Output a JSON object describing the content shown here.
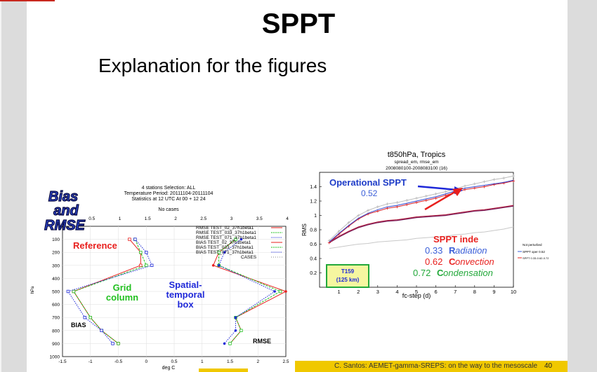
{
  "slide": {
    "title": "SPPT",
    "subtitle": "Explanation for the figures",
    "footer": "C. Santos: AEMET-gamma-SREPS: on the way to the mesoscale",
    "page_number": "40"
  },
  "left_figure": {
    "header_lines": [
      "4 stations Selection: ALL",
      "Temperature  Period: 20111104-20111104",
      "Statistics at 12 UTC  At 00 + 12 24"
    ],
    "top_axis_title": "No cases",
    "top_ticks": [
      "0.5",
      "1",
      "1.5",
      "2",
      "2.5",
      "3",
      "3.5",
      "4"
    ],
    "bottom_ticks": [
      "-1.5",
      "-1",
      "-0.5",
      "0",
      "0.5",
      "1",
      "1.5",
      "2",
      "2.5"
    ],
    "y_ticks": [
      "100",
      "200",
      "300",
      "400",
      "500",
      "600",
      "700",
      "800",
      "900",
      "1000"
    ],
    "xlabel": "deg C",
    "ylabel": "hPa",
    "legend": [
      "RMSE TEST_02_37h1beta1",
      "RMSE TEST_033_37h1beta1",
      "RMSE TEST_071_37h1beta1",
      "BIAS TEST_02_37h1beta1",
      "BIAS TEST_033_37h1beta1",
      "BIAS TEST_071_37h1beta1",
      "CASES"
    ],
    "stamp": [
      "Bias",
      "and",
      "RMSE"
    ],
    "ann_reference": "Reference",
    "ann_grid": [
      "Grid",
      "column"
    ],
    "ann_spatial": [
      "Spatial-",
      "temporal",
      "box"
    ],
    "ann_bias": "BIAS",
    "ann_rmse": "RMSE",
    "colors": {
      "red": "#e8201e",
      "green": "#22c020",
      "blue": "#1e28d8"
    }
  },
  "right_figure": {
    "title": "t850hPa,  Tropics",
    "subtitle1": "spread_em, rmse_em",
    "subtitle2": "2008080100-2008083100 (16)",
    "ylabel": "RMS",
    "xlabel": "fc-step (d)",
    "x_ticks": [
      "1",
      "2",
      "3",
      "4",
      "5",
      "6",
      "7",
      "8",
      "9",
      "10"
    ],
    "y_ticks": [
      "0.2",
      "0.4",
      "0.6",
      "0.8",
      "1",
      "1.2",
      "1.4"
    ],
    "ann_operational": "Operational SPPT",
    "ann_operational_value": "0.52",
    "ann_sppt_inde": "SPPT inde",
    "ann_lines": [
      {
        "value": "0.33",
        "initial": "R",
        "rest": "adiation",
        "color": "#3a5ed8"
      },
      {
        "value": "0.62",
        "initial": "C",
        "rest": "onvection",
        "color": "#e8201e"
      },
      {
        "value": "0.72",
        "initial": "C",
        "rest": "ondensation",
        "color": "#22a83a"
      }
    ],
    "box_label": [
      "T159",
      "(125 km)"
    ],
    "legend": [
      "Not perturbed",
      "SPPT oper 0.52",
      "SPPT 0.33-0.62-0.72"
    ]
  },
  "chart_data": [
    {
      "type": "line",
      "title": "4 stations Selection: ALL",
      "xlabel": "deg C",
      "ylabel": "hPa",
      "xlim": [
        -1.5,
        2.5
      ],
      "ylim": [
        1000,
        0
      ],
      "y": [
        100,
        200,
        300,
        500,
        700,
        800,
        900
      ],
      "series": [
        {
          "name": "RMSE TEST_02_37h1beta1",
          "values": [
            1.6,
            1.3,
            1.2,
            2.5,
            1.6,
            1.7,
            1.5
          ]
        },
        {
          "name": "RMSE TEST_033_37h1beta1",
          "values": [
            1.6,
            1.3,
            1.3,
            2.4,
            1.6,
            1.7,
            1.5
          ]
        },
        {
          "name": "RMSE TEST_071_37h1beta1",
          "values": [
            1.7,
            1.4,
            1.3,
            2.3,
            1.6,
            1.6,
            1.4
          ]
        },
        {
          "name": "BIAS TEST_02_37h1beta1",
          "values": [
            -0.3,
            -0.1,
            -0.1,
            -1.3,
            -1.0,
            -0.8,
            -0.5
          ]
        },
        {
          "name": "BIAS TEST_033_37h1beta1",
          "values": [
            -0.2,
            -0.1,
            0.0,
            -1.3,
            -1.0,
            -0.8,
            -0.5
          ]
        },
        {
          "name": "BIAS TEST_071_37h1beta1",
          "values": [
            -0.2,
            0.0,
            0.1,
            -1.4,
            -1.1,
            -0.8,
            -0.6
          ]
        }
      ]
    },
    {
      "type": "line",
      "title": "t850hPa,  Tropics",
      "xlabel": "fc-step (d)",
      "ylabel": "RMS",
      "xlim": [
        0,
        10
      ],
      "ylim": [
        0,
        1.6
      ],
      "x": [
        0.5,
        1,
        1.5,
        2,
        2.5,
        3,
        3.5,
        4,
        4.5,
        5,
        5.5,
        6,
        6.5,
        7,
        7.5,
        8,
        8.5,
        9,
        9.5,
        10
      ],
      "series": [
        {
          "name": "Not perturbed",
          "values": [
            0.54,
            0.56,
            0.58,
            0.6,
            0.61,
            0.63,
            0.64,
            0.65,
            0.66,
            0.68,
            0.69,
            0.7,
            0.71,
            0.73,
            0.74,
            0.76,
            0.77,
            0.79,
            0.81,
            0.84
          ]
        },
        {
          "name": "SPPT oper 0.52",
          "values": [
            0.62,
            0.7,
            0.77,
            0.83,
            0.87,
            0.9,
            0.92,
            0.93,
            0.95,
            0.97,
            0.98,
            0.99,
            1.0,
            1.02,
            1.04,
            1.06,
            1.07,
            1.09,
            1.11,
            1.13
          ]
        },
        {
          "name": "SPPT 0.33-0.62-0.72",
          "values": [
            0.63,
            0.71,
            0.78,
            0.84,
            0.88,
            0.91,
            0.93,
            0.94,
            0.96,
            0.98,
            0.99,
            1.0,
            1.01,
            1.03,
            1.05,
            1.07,
            1.08,
            1.1,
            1.12,
            1.14
          ]
        },
        {
          "name": "spread upper",
          "values": [
            0.65,
            0.78,
            0.9,
            1.0,
            1.07,
            1.12,
            1.16,
            1.18,
            1.21,
            1.24,
            1.27,
            1.3,
            1.33,
            1.37,
            1.41,
            1.44,
            1.47,
            1.5,
            1.52,
            1.55
          ]
        },
        {
          "name": "spread red",
          "values": [
            0.62,
            0.74,
            0.85,
            0.95,
            1.02,
            1.06,
            1.1,
            1.12,
            1.15,
            1.18,
            1.21,
            1.24,
            1.28,
            1.32,
            1.36,
            1.38,
            1.4,
            1.43,
            1.45,
            1.48
          ]
        },
        {
          "name": "spread blue",
          "values": [
            0.63,
            0.75,
            0.86,
            0.96,
            1.03,
            1.08,
            1.12,
            1.14,
            1.17,
            1.2,
            1.23,
            1.26,
            1.3,
            1.34,
            1.38,
            1.4,
            1.42,
            1.44,
            1.46,
            1.49
          ]
        }
      ]
    }
  ]
}
